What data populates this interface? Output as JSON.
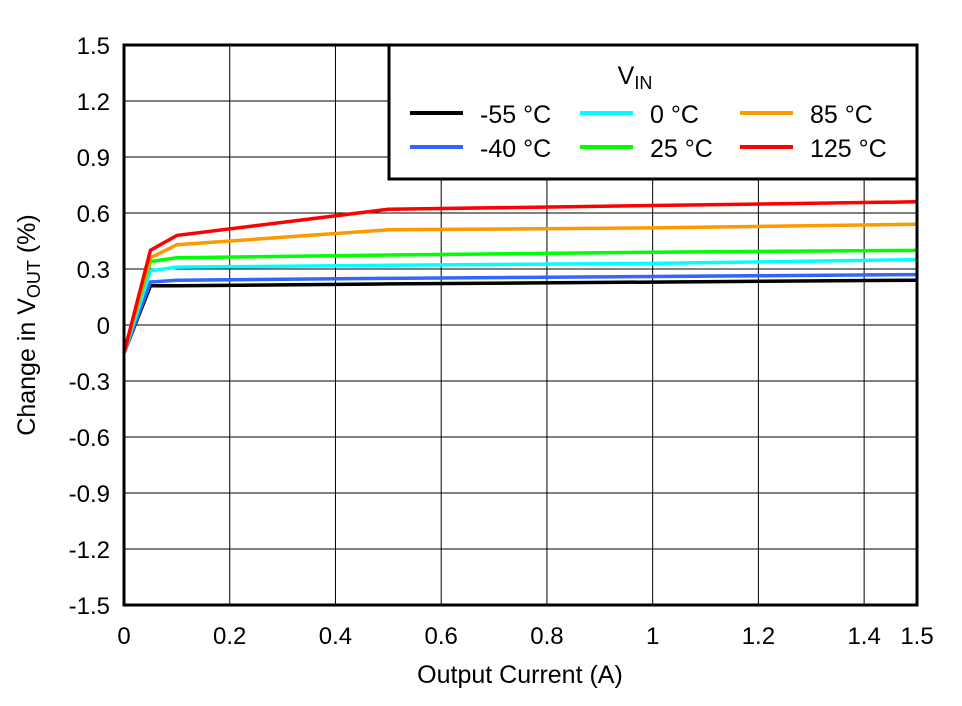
{
  "chart_data": {
    "type": "line",
    "xlabel": "Output Current (A)",
    "ylabel_main": "Change in V",
    "ylabel_sub": "OUT",
    "ylabel_suffix": " (%)",
    "xlim": [
      0,
      1.5
    ],
    "ylim": [
      -1.5,
      1.5
    ],
    "xticks": [
      "0",
      "0.2",
      "0.4",
      "0.6",
      "0.8",
      "1",
      "1.2",
      "1.4",
      "1.5"
    ],
    "xtick_values": [
      0,
      0.2,
      0.4,
      0.6,
      0.8,
      1,
      1.2,
      1.4,
      1.5
    ],
    "yticks": [
      "1.5",
      "1.2",
      "0.9",
      "0.6",
      "0.3",
      "0",
      "-0.3",
      "-0.6",
      "-0.9",
      "-1.2",
      "-1.5"
    ],
    "ytick_values": [
      1.5,
      1.2,
      0.9,
      0.6,
      0.3,
      0,
      -0.3,
      -0.6,
      -0.9,
      -1.2,
      -1.5
    ],
    "grid": true,
    "legend_title_main": "V",
    "legend_title_sub": "IN",
    "legend_position": "top-right",
    "x": [
      0,
      0.05,
      0.1,
      0.5,
      1.0,
      1.5
    ],
    "series": [
      {
        "name": "-55 °C",
        "color": "#000000",
        "values": [
          -0.15,
          0.21,
          0.21,
          0.22,
          0.23,
          0.24
        ]
      },
      {
        "name": "-40 °C",
        "color": "#3366ff",
        "values": [
          -0.15,
          0.23,
          0.24,
          0.25,
          0.26,
          0.27
        ]
      },
      {
        "name": "0 °C",
        "color": "#00ffff",
        "values": [
          -0.15,
          0.29,
          0.31,
          0.32,
          0.33,
          0.35
        ]
      },
      {
        "name": "25 °C",
        "color": "#00ff00",
        "values": [
          -0.15,
          0.34,
          0.36,
          0.375,
          0.39,
          0.4
        ]
      },
      {
        "name": "85 °C",
        "color": "#ff9900",
        "values": [
          -0.15,
          0.36,
          0.43,
          0.51,
          0.52,
          0.54
        ]
      },
      {
        "name": "125 °C",
        "color": "#ff0000",
        "values": [
          -0.15,
          0.4,
          0.48,
          0.62,
          0.64,
          0.66
        ]
      }
    ]
  }
}
